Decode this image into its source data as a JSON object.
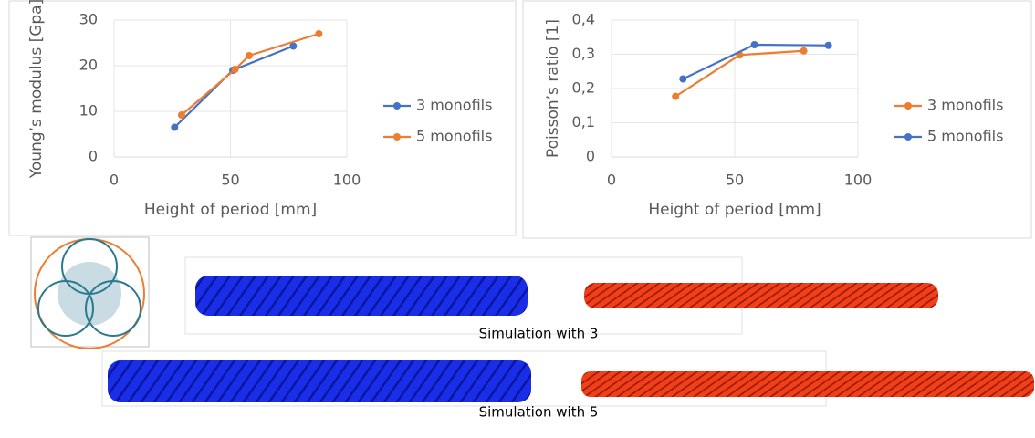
{
  "chart_data": [
    {
      "type": "line",
      "y_label": "Young’s modulus [Gpa]",
      "x_label": "Height of period [mm]",
      "xlim": [
        0,
        100
      ],
      "xticks": [
        0,
        50,
        100
      ],
      "ylim": [
        0,
        30
      ],
      "yticks": [
        0,
        10,
        20,
        30
      ],
      "grid": true,
      "legend": "right",
      "series": [
        {
          "name": "3 monofils",
          "color": "#4472c4",
          "x": [
            26,
            51,
            77
          ],
          "values": [
            6.5,
            19,
            24.3
          ]
        },
        {
          "name": "5 monofils",
          "color": "#ed7d31",
          "x": [
            29,
            52,
            58,
            88
          ],
          "values": [
            9.2,
            19.2,
            22.2,
            27
          ]
        }
      ]
    },
    {
      "type": "line",
      "y_label": "Poisson’s ratio [1]",
      "x_label": "Height of period [mm]",
      "xlim": [
        0,
        100
      ],
      "xticks": [
        0,
        50,
        100
      ],
      "ylim": [
        0,
        0.4
      ],
      "yticks": [
        0,
        {
          "value": 0.1,
          "label": "0,1"
        },
        {
          "value": 0.2,
          "label": "0,2"
        },
        {
          "value": 0.3,
          "label": "0,3"
        },
        {
          "value": 0.4,
          "label": "0,4"
        }
      ],
      "grid": true,
      "legend": "right",
      "series": [
        {
          "name": "3 monofils",
          "color": "#ed7d31",
          "x": [
            26,
            52,
            78
          ],
          "values": [
            0.177,
            0.298,
            0.31
          ]
        },
        {
          "name": "5 monofils",
          "color": "#4472c4",
          "x": [
            29,
            58,
            88
          ],
          "values": [
            0.228,
            0.328,
            0.326
          ]
        }
      ]
    }
  ],
  "captions": [
    "Simulation with 3",
    "Simulation with 5"
  ]
}
